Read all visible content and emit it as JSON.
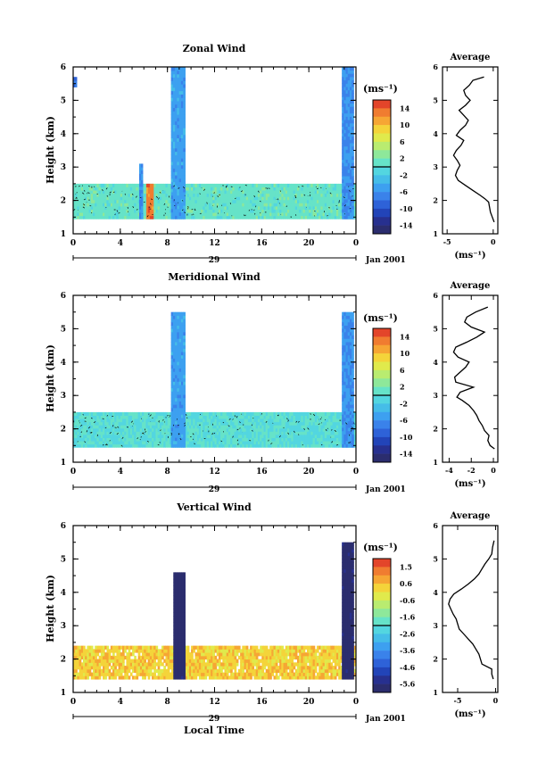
{
  "figure": {
    "date_label": "Jan 2001",
    "day_label": "29",
    "bottom_xlabel": "Local Time",
    "ylabel": "Height (km)",
    "cbar_unit_label": "(ms⁻¹)",
    "avg_title": "Average",
    "avg_xlabel": "(ms⁻¹)"
  },
  "chart_data": [
    {
      "type": "heatmap",
      "title": "Zonal Wind",
      "xlabel": "",
      "ylabel": "Height (km)",
      "x_ticks": [
        "0",
        "4",
        "8",
        "12",
        "16",
        "20",
        "0"
      ],
      "y_ticks": [
        "1",
        "2",
        "3",
        "4",
        "5",
        "6"
      ],
      "xlim": [
        0,
        24
      ],
      "ylim": [
        1,
        6
      ],
      "colorbar": {
        "unit": "(ms⁻¹)",
        "ticks": [
          "14",
          "10",
          "6",
          "2",
          "-2",
          "-6",
          "-10",
          "-14"
        ],
        "range": [
          -16,
          16
        ],
        "colors": [
          "#2b2d6e",
          "#27308f",
          "#2244b8",
          "#2e62d8",
          "#3a82ea",
          "#3da0f0",
          "#45bde8",
          "#53d6e0",
          "#66e3c8",
          "#8ee89a",
          "#b9ec70",
          "#e0ea4c",
          "#f4d43a",
          "#f6a634",
          "#f07c30",
          "#e3452a"
        ]
      },
      "description_blocks": [
        {
          "x": [
            0,
            0.3
          ],
          "y": [
            5.4,
            5.7
          ],
          "value": -9
        },
        {
          "x": [
            0,
            24
          ],
          "y": [
            1.45,
            2.5
          ],
          "value": 1
        },
        {
          "x": [
            5.6,
            5.9
          ],
          "y": [
            1.45,
            3.1
          ],
          "value": -6
        },
        {
          "x": [
            6.2,
            6.8
          ],
          "y": [
            1.45,
            2.5
          ],
          "value": 13
        },
        {
          "x": [
            8.3,
            9.5
          ],
          "y": [
            1.45,
            6.6
          ],
          "value": -5
        },
        {
          "x": [
            22.8,
            23.8
          ],
          "y": [
            1.45,
            6.5
          ],
          "value": -6
        }
      ],
      "average_profile": {
        "title": "Average",
        "xlabel": "(ms⁻¹)",
        "x_ticks": [
          "-5",
          "0"
        ],
        "xlim": [
          -5.5,
          0.5
        ],
        "ylim": [
          1,
          6
        ],
        "x": [
          0.1,
          -0.1,
          -0.3,
          -0.4,
          -0.5,
          -0.9,
          -1.4,
          -2.2,
          -3.0,
          -3.8,
          -4.1,
          -3.9,
          -3.6,
          -3.9,
          -4.3,
          -4.0,
          -3.5,
          -3.2,
          -4.0,
          -3.6,
          -3.0,
          -2.7,
          -3.2,
          -3.7,
          -3.0,
          -2.5,
          -3.0,
          -3.2,
          -2.6,
          -2.2,
          -1.0
        ],
        "y": [
          1.35,
          1.5,
          1.65,
          1.8,
          1.95,
          2.05,
          2.15,
          2.3,
          2.45,
          2.6,
          2.75,
          2.9,
          3.05,
          3.2,
          3.35,
          3.5,
          3.65,
          3.8,
          3.95,
          4.1,
          4.25,
          4.4,
          4.55,
          4.7,
          4.85,
          5.0,
          5.15,
          5.3,
          5.45,
          5.6,
          5.7
        ]
      }
    },
    {
      "type": "heatmap",
      "title": "Meridional Wind",
      "xlabel": "",
      "ylabel": "Height (km)",
      "x_ticks": [
        "0",
        "4",
        "8",
        "12",
        "16",
        "20",
        "0"
      ],
      "y_ticks": [
        "1",
        "2",
        "3",
        "4",
        "5",
        "6"
      ],
      "xlim": [
        0,
        24
      ],
      "ylim": [
        1,
        6
      ],
      "colorbar": {
        "unit": "(ms⁻¹)",
        "ticks": [
          "14",
          "10",
          "6",
          "2",
          "-2",
          "-6",
          "-10",
          "-14"
        ],
        "range": [
          -16,
          16
        ],
        "colors": [
          "#2b2d6e",
          "#27308f",
          "#2244b8",
          "#2e62d8",
          "#3a82ea",
          "#3da0f0",
          "#45bde8",
          "#53d6e0",
          "#66e3c8",
          "#8ee89a",
          "#b9ec70",
          "#e0ea4c",
          "#f4d43a",
          "#f6a634",
          "#f07c30",
          "#e3452a"
        ]
      },
      "description_blocks": [
        {
          "x": [
            0,
            24
          ],
          "y": [
            1.45,
            2.5
          ],
          "value": 0
        },
        {
          "x": [
            8.3,
            9.5
          ],
          "y": [
            1.45,
            5.5
          ],
          "value": -5
        },
        {
          "x": [
            22.8,
            23.8
          ],
          "y": [
            1.45,
            5.5
          ],
          "value": -6
        }
      ],
      "average_profile": {
        "title": "Average",
        "xlabel": "(ms⁻¹)",
        "x_ticks": [
          "-4",
          "-2",
          "0"
        ],
        "xlim": [
          -4.6,
          0.4
        ],
        "ylim": [
          1,
          6
        ],
        "x": [
          0.1,
          -0.3,
          -0.5,
          -0.4,
          -0.8,
          -1.0,
          -1.3,
          -1.5,
          -1.8,
          -2.2,
          -2.8,
          -3.3,
          -3.0,
          -1.8,
          -3.4,
          -3.5,
          -3.0,
          -2.5,
          -2.2,
          -3.2,
          -3.6,
          -3.4,
          -2.4,
          -1.5,
          -0.8,
          -2.0,
          -2.6,
          -2.4,
          -1.6,
          -0.5
        ],
        "y": [
          1.4,
          1.5,
          1.65,
          1.8,
          1.95,
          2.1,
          2.25,
          2.4,
          2.55,
          2.7,
          2.85,
          2.95,
          3.1,
          3.25,
          3.4,
          3.55,
          3.7,
          3.85,
          4.0,
          4.15,
          4.3,
          4.45,
          4.6,
          4.75,
          4.9,
          5.05,
          5.2,
          5.35,
          5.5,
          5.65
        ]
      }
    },
    {
      "type": "heatmap",
      "title": "Vertical Wind",
      "xlabel": "Local Time",
      "ylabel": "Height (km)",
      "x_ticks": [
        "0",
        "4",
        "8",
        "12",
        "16",
        "20",
        "0"
      ],
      "y_ticks": [
        "1",
        "2",
        "3",
        "4",
        "5",
        "6"
      ],
      "xlim": [
        0,
        24
      ],
      "ylim": [
        1,
        6
      ],
      "colorbar": {
        "unit": "(ms⁻¹)",
        "ticks": [
          "1.5",
          "0.6",
          "-0.6",
          "-1.6",
          "-2.6",
          "-3.6",
          "-4.6",
          "-5.6"
        ],
        "range": [
          -6,
          2
        ],
        "colors": [
          "#2b2d6e",
          "#27308f",
          "#2244b8",
          "#2e62d8",
          "#3a82ea",
          "#3da0f0",
          "#45bde8",
          "#53d6e0",
          "#66e3c8",
          "#8ee89a",
          "#b9ec70",
          "#e0ea4c",
          "#f4d43a",
          "#f6a634",
          "#f07c30",
          "#e3452a"
        ]
      },
      "description_blocks": [
        {
          "x": [
            0,
            24
          ],
          "y": [
            1.4,
            2.4
          ],
          "value": 0.3
        },
        {
          "x": [
            8.5,
            9.5
          ],
          "y": [
            1.4,
            4.6
          ],
          "value": -5.8
        },
        {
          "x": [
            22.8,
            23.8
          ],
          "y": [
            1.4,
            5.5
          ],
          "value": -5.8
        }
      ],
      "average_profile": {
        "title": "Average",
        "xlabel": "(ms⁻¹)",
        "x_ticks": [
          "-5",
          "0"
        ],
        "xlim": [
          -7,
          0.3
        ],
        "ylim": [
          1,
          6
        ],
        "x": [
          -0.3,
          -0.5,
          -0.5,
          -1.8,
          -2.0,
          -2.2,
          -2.6,
          -3.0,
          -3.6,
          -4.2,
          -4.8,
          -5.0,
          -5.2,
          -5.6,
          -5.9,
          -6.2,
          -6.0,
          -5.5,
          -4.5,
          -3.6,
          -2.8,
          -2.2,
          -1.8,
          -1.4,
          -0.9,
          -0.5,
          -0.4,
          -0.2
        ],
        "y": [
          1.4,
          1.55,
          1.7,
          1.85,
          2.0,
          2.15,
          2.3,
          2.45,
          2.6,
          2.75,
          2.9,
          3.05,
          3.2,
          3.35,
          3.5,
          3.65,
          3.8,
          3.95,
          4.1,
          4.25,
          4.4,
          4.55,
          4.7,
          4.85,
          5.0,
          5.15,
          5.35,
          5.55
        ]
      }
    }
  ]
}
